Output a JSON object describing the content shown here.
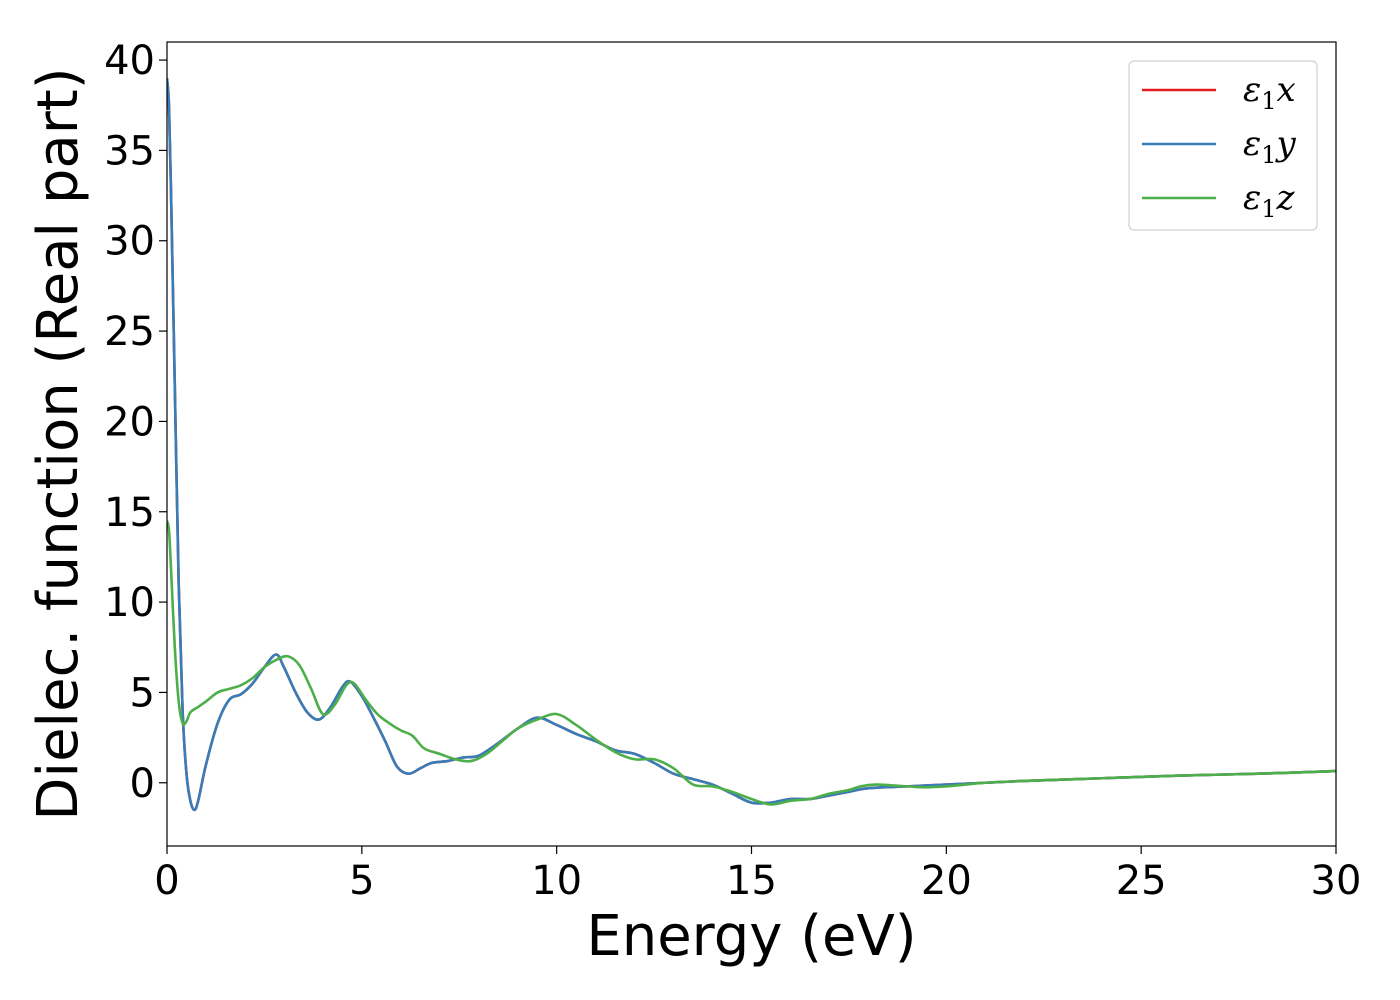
{
  "chart_data": {
    "type": "line",
    "xlabel": "Energy (eV)",
    "ylabel": "Dielec. function (Real part)",
    "xlim": [
      0,
      30
    ],
    "ylim": [
      -3.5,
      41
    ],
    "xticks": [
      0,
      5,
      10,
      15,
      20,
      25,
      30
    ],
    "yticks": [
      0,
      5,
      10,
      15,
      20,
      25,
      30,
      35,
      40
    ],
    "grid": false,
    "legend_position": "top-right",
    "series": [
      {
        "name": "ε1x",
        "legend": {
          "base": "ε",
          "sub": "1",
          "tail": "x"
        },
        "color": "#e41a1c",
        "x": [
          0.0,
          0.05,
          0.1,
          0.2,
          0.3,
          0.4,
          0.5,
          0.6,
          0.7,
          0.8,
          1.0,
          1.3,
          1.6,
          1.9,
          2.2,
          2.5,
          2.8,
          3.0,
          3.3,
          3.6,
          3.9,
          4.2,
          4.5,
          4.7,
          5.0,
          5.3,
          5.6,
          5.9,
          6.2,
          6.5,
          6.8,
          7.2,
          7.6,
          8.0,
          8.5,
          9.0,
          9.5,
          10.0,
          10.5,
          11.0,
          11.5,
          12.0,
          12.5,
          13.0,
          13.5,
          14.0,
          14.5,
          15.0,
          15.5,
          16.0,
          16.5,
          17.0,
          17.5,
          18.0,
          19.0,
          20.0,
          21.0,
          22.0,
          24.0,
          26.0,
          28.0,
          30.0
        ],
        "y": [
          39.0,
          37.5,
          33.0,
          22.0,
          11.0,
          4.0,
          0.5,
          -1.0,
          -1.5,
          -1.0,
          1.0,
          3.3,
          4.6,
          4.9,
          5.5,
          6.4,
          7.1,
          6.4,
          5.0,
          3.9,
          3.5,
          4.2,
          5.3,
          5.6,
          4.8,
          3.6,
          2.3,
          0.9,
          0.5,
          0.8,
          1.1,
          1.2,
          1.4,
          1.5,
          2.2,
          3.0,
          3.6,
          3.2,
          2.7,
          2.3,
          1.8,
          1.6,
          1.1,
          0.5,
          0.2,
          -0.1,
          -0.6,
          -1.1,
          -1.1,
          -0.9,
          -0.9,
          -0.7,
          -0.5,
          -0.3,
          -0.2,
          -0.1,
          0.0,
          0.1,
          0.25,
          0.4,
          0.5,
          0.65
        ]
      },
      {
        "name": "ε1y",
        "legend": {
          "base": "ε",
          "sub": "1",
          "tail": "y"
        },
        "color": "#377eb8",
        "x": [
          0.0,
          0.05,
          0.1,
          0.2,
          0.3,
          0.4,
          0.5,
          0.6,
          0.7,
          0.8,
          1.0,
          1.3,
          1.6,
          1.9,
          2.2,
          2.5,
          2.8,
          3.0,
          3.3,
          3.6,
          3.9,
          4.2,
          4.5,
          4.7,
          5.0,
          5.3,
          5.6,
          5.9,
          6.2,
          6.5,
          6.8,
          7.2,
          7.6,
          8.0,
          8.5,
          9.0,
          9.5,
          10.0,
          10.5,
          11.0,
          11.5,
          12.0,
          12.5,
          13.0,
          13.5,
          14.0,
          14.5,
          15.0,
          15.5,
          16.0,
          16.5,
          17.0,
          17.5,
          18.0,
          19.0,
          20.0,
          21.0,
          22.0,
          24.0,
          26.0,
          28.0,
          30.0
        ],
        "y": [
          39.0,
          37.5,
          33.0,
          22.0,
          11.0,
          4.0,
          0.5,
          -1.0,
          -1.5,
          -1.0,
          1.0,
          3.3,
          4.6,
          4.9,
          5.5,
          6.4,
          7.1,
          6.4,
          5.0,
          3.9,
          3.5,
          4.2,
          5.3,
          5.6,
          4.8,
          3.6,
          2.3,
          0.9,
          0.5,
          0.8,
          1.1,
          1.2,
          1.4,
          1.5,
          2.2,
          3.0,
          3.6,
          3.2,
          2.7,
          2.3,
          1.8,
          1.6,
          1.1,
          0.5,
          0.2,
          -0.1,
          -0.6,
          -1.1,
          -1.1,
          -0.9,
          -0.9,
          -0.7,
          -0.5,
          -0.3,
          -0.2,
          -0.1,
          0.0,
          0.1,
          0.25,
          0.4,
          0.5,
          0.65
        ]
      },
      {
        "name": "ε1z",
        "legend": {
          "base": "ε",
          "sub": "1",
          "tail": "z"
        },
        "color": "#4daf4a",
        "x": [
          0.0,
          0.05,
          0.1,
          0.2,
          0.3,
          0.4,
          0.5,
          0.6,
          0.8,
          1.0,
          1.3,
          1.6,
          1.9,
          2.2,
          2.5,
          2.8,
          3.1,
          3.4,
          3.7,
          4.0,
          4.3,
          4.6,
          4.8,
          5.1,
          5.4,
          5.7,
          6.0,
          6.3,
          6.6,
          7.0,
          7.4,
          7.8,
          8.2,
          8.6,
          9.0,
          9.5,
          10.0,
          10.5,
          11.0,
          11.5,
          12.0,
          12.5,
          13.0,
          13.5,
          14.0,
          14.5,
          15.0,
          15.5,
          16.0,
          16.5,
          17.0,
          17.5,
          17.8,
          18.2,
          19.0,
          19.5,
          20.0,
          20.5,
          21.0,
          22.0,
          24.0,
          26.0,
          28.0,
          30.0
        ],
        "y": [
          14.5,
          14.0,
          12.0,
          7.5,
          4.5,
          3.3,
          3.4,
          3.9,
          4.2,
          4.5,
          5.0,
          5.2,
          5.4,
          5.8,
          6.4,
          6.8,
          7.0,
          6.5,
          5.2,
          3.8,
          4.3,
          5.4,
          5.5,
          4.6,
          3.8,
          3.3,
          2.9,
          2.6,
          1.9,
          1.6,
          1.3,
          1.2,
          1.6,
          2.3,
          3.0,
          3.5,
          3.8,
          3.2,
          2.4,
          1.7,
          1.3,
          1.3,
          0.8,
          -0.1,
          -0.2,
          -0.5,
          -0.9,
          -1.2,
          -1.0,
          -0.9,
          -0.6,
          -0.4,
          -0.2,
          -0.1,
          -0.2,
          -0.25,
          -0.2,
          -0.1,
          0.0,
          0.1,
          0.25,
          0.4,
          0.5,
          0.65
        ]
      }
    ]
  }
}
